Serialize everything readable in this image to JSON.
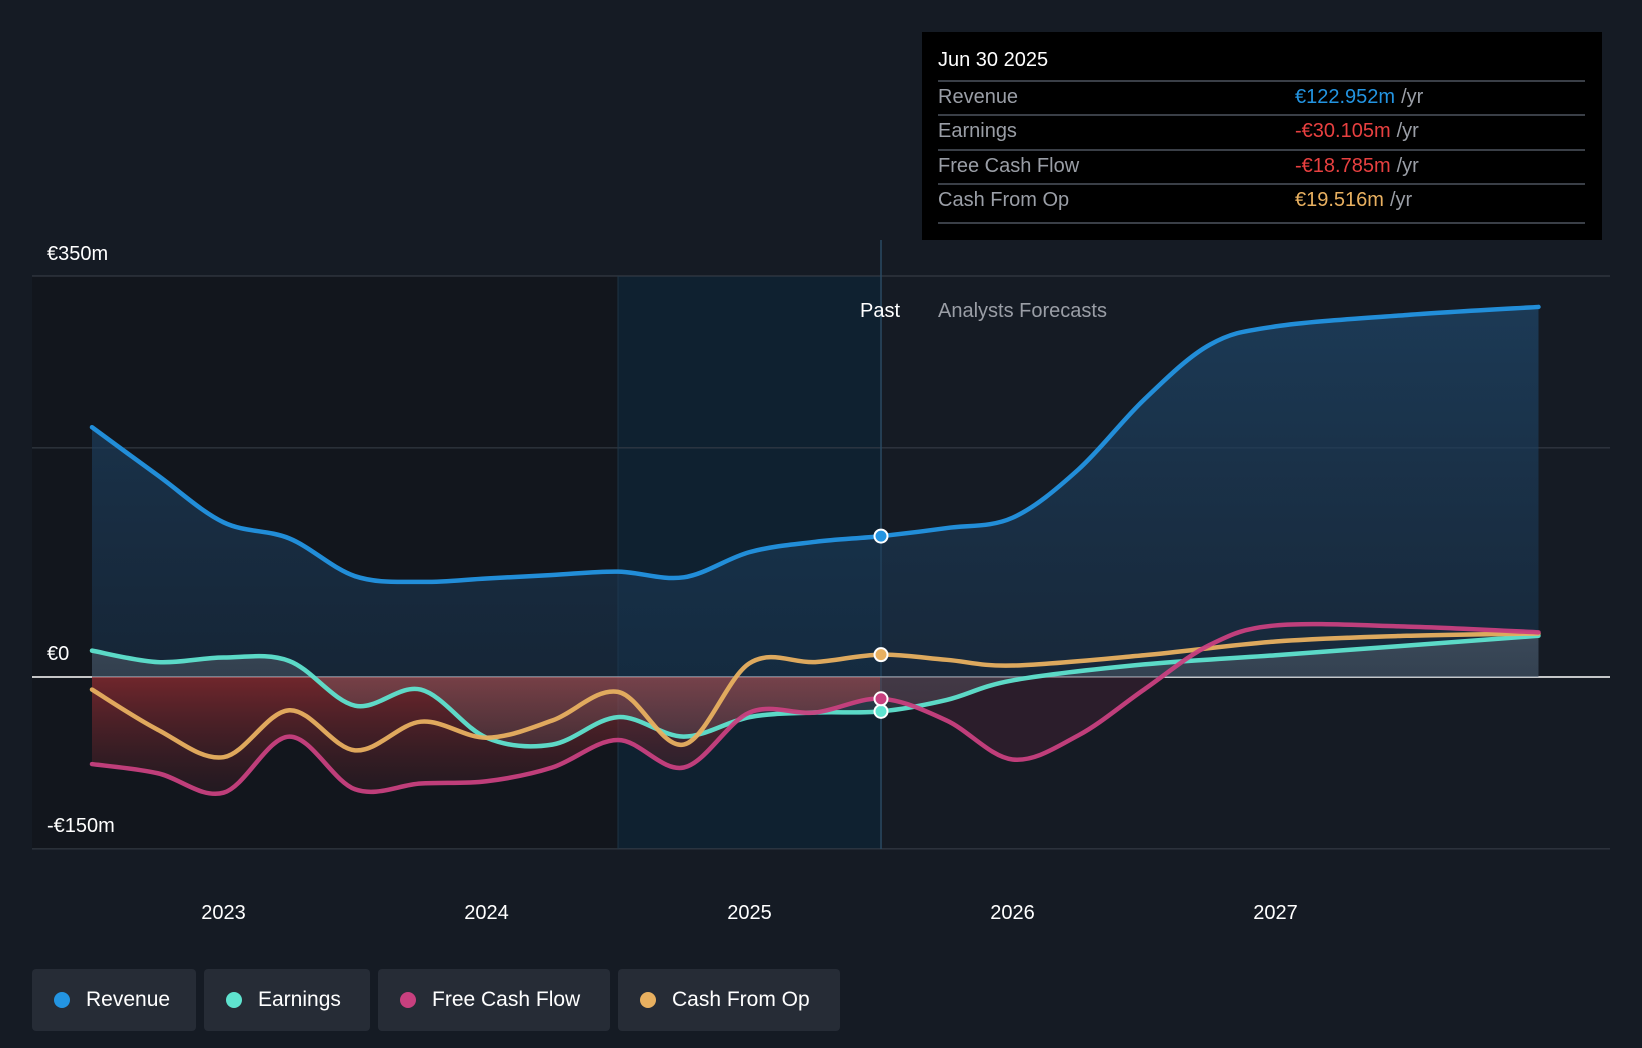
{
  "chart_data": {
    "type": "line",
    "x_unit": "year",
    "xlim": [
      2022.5,
      2028.0
    ],
    "ylim": [
      -150,
      350
    ],
    "y_ticks": [
      {
        "value": 350,
        "label": "€350m"
      },
      {
        "value": 0,
        "label": "€0"
      },
      {
        "value": -150,
        "label": "-€150m"
      }
    ],
    "x_ticks": [
      {
        "value": 2023,
        "label": "2023"
      },
      {
        "value": 2024,
        "label": "2024"
      },
      {
        "value": 2025,
        "label": "2025"
      },
      {
        "value": 2026,
        "label": "2026"
      },
      {
        "value": 2027,
        "label": "2027"
      }
    ],
    "grid": true,
    "highlight_start": 2024.5,
    "divider": 2025.5,
    "past_label": "Past",
    "forecast_label": "Analysts Forecasts",
    "series": [
      {
        "name": "Revenue",
        "color": "#2394e1",
        "x": [
          2022.5,
          2022.75,
          2023,
          2023.25,
          2023.5,
          2023.75,
          2024,
          2024.25,
          2024.5,
          2024.75,
          2025,
          2025.25,
          2025.5,
          2025.75,
          2026,
          2026.25,
          2026.5,
          2026.75,
          2027,
          2027.5,
          2028
        ],
        "values": [
          218,
          176,
          135,
          121,
          88,
          83,
          86,
          89,
          92,
          87,
          109,
          118,
          123,
          130,
          139,
          181,
          242,
          290,
          306,
          316,
          323
        ]
      },
      {
        "name": "Earnings",
        "color": "#5fe3cf",
        "x": [
          2022.5,
          2022.75,
          2023,
          2023.25,
          2023.5,
          2023.75,
          2024,
          2024.25,
          2024.5,
          2024.75,
          2025,
          2025.25,
          2025.5,
          2025.75,
          2026,
          2026.5,
          2027,
          2028
        ],
        "values": [
          23,
          13,
          17,
          14,
          -25,
          -11,
          -53,
          -59,
          -35,
          -52,
          -35,
          -31,
          -30,
          -20,
          -3,
          11,
          19,
          36
        ]
      },
      {
        "name": "Free Cash Flow",
        "color": "#c8407f",
        "x": [
          2022.5,
          2022.75,
          2023,
          2023.25,
          2023.5,
          2023.75,
          2024,
          2024.25,
          2024.5,
          2024.75,
          2025,
          2025.25,
          2025.5,
          2025.75,
          2026,
          2026.25,
          2026.5,
          2026.75,
          2027,
          2027.5,
          2028
        ],
        "values": [
          -76,
          -84,
          -101,
          -52,
          -98,
          -93,
          -91,
          -79,
          -55,
          -79,
          -31,
          -31,
          -19,
          -38,
          -72,
          -51,
          -11,
          28,
          45,
          44,
          39
        ]
      },
      {
        "name": "Cash From Op",
        "color": "#e8b060",
        "x": [
          2022.5,
          2022.75,
          2023,
          2023.25,
          2023.5,
          2023.75,
          2024,
          2024.25,
          2024.5,
          2024.75,
          2025,
          2025.25,
          2025.5,
          2025.75,
          2026,
          2026.5,
          2027,
          2027.5,
          2028
        ],
        "values": [
          -11,
          -46,
          -70,
          -29,
          -64,
          -39,
          -53,
          -38,
          -13,
          -59,
          12,
          13,
          19.5,
          15,
          10,
          19,
          31,
          36,
          38
        ]
      }
    ]
  },
  "tooltip": {
    "date": "Jun 30 2025",
    "unit": "/yr",
    "rows": [
      {
        "label": "Revenue",
        "value": "€122.952m",
        "color": "#2394e1"
      },
      {
        "label": "Earnings",
        "value": "-€30.105m",
        "color": "#e84040"
      },
      {
        "label": "Free Cash Flow",
        "value": "-€18.785m",
        "color": "#e84040"
      },
      {
        "label": "Cash From Op",
        "value": "€19.516m",
        "color": "#e8b060"
      }
    ]
  },
  "legend": [
    {
      "label": "Revenue",
      "color": "#2394e1"
    },
    {
      "label": "Earnings",
      "color": "#5fe3cf"
    },
    {
      "label": "Free Cash Flow",
      "color": "#c8407f"
    },
    {
      "label": "Cash From Op",
      "color": "#e8b060"
    }
  ]
}
